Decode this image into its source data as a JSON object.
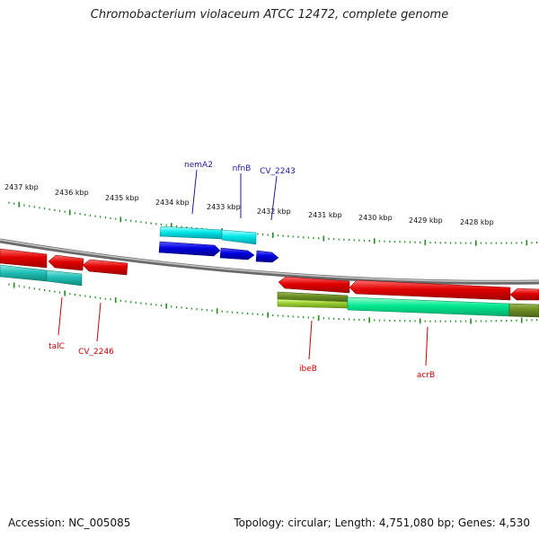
{
  "title": "Chromobacterium violaceum ATCC 12472, complete genome",
  "footer": {
    "accession": "Accession: NC_005085",
    "topology": "Topology: circular; Length: 4,751,080 bp; Genes: 4,530"
  },
  "kbp_labels": [
    "2437 kbp",
    "2436 kbp",
    "2435 kbp",
    "2434 kbp",
    "2433 kbp",
    "2432 kbp",
    "2431 kbp",
    "2430 kbp",
    "2429 kbp",
    "2428 kbp"
  ],
  "gene_labels_top": [
    "nemA2",
    "nfnB",
    "CV_2243"
  ],
  "gene_labels_bottom": [
    "talC",
    "CV_2246",
    "ibeB",
    "acrB"
  ],
  "colors": {
    "backbone": "#8a8a8a",
    "tick": "#1e8c1e",
    "gene_red": "#e60000",
    "gene_blue": "#0000dd",
    "gene_cyan": "#00e5e5",
    "gene_teal": "#2fc8b0",
    "gene_spring": "#00e890",
    "gene_olive": "#6b8e23",
    "gene_lime": "#9acd32",
    "label_top": "#1a1aa0",
    "label_bottom": "#cc0000"
  }
}
